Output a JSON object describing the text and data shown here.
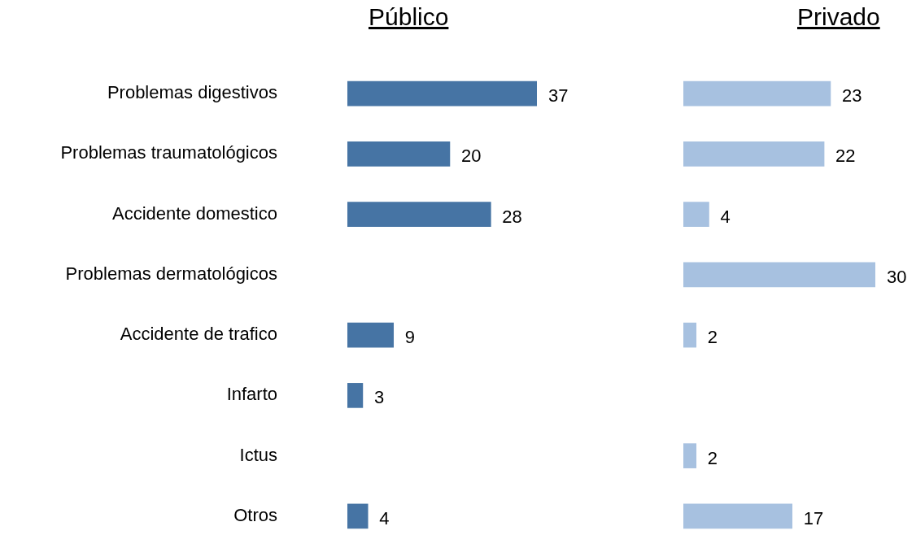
{
  "chart_data": [
    {
      "type": "bar",
      "orientation": "horizontal",
      "title": "Público",
      "categories": [
        "Problemas digestivos",
        "Problemas traumatológicos",
        "Accidente domestico",
        "Problemas dermatológicos",
        "Accidente de trafico",
        "Infarto",
        "Ictus",
        "Otros"
      ],
      "series": [
        {
          "color": "#4674a4",
          "values": [
            37,
            20,
            28,
            null,
            9,
            3,
            null,
            4
          ]
        }
      ],
      "data_labels": true,
      "grid": false,
      "legend": false,
      "tick_labels": "y"
    },
    {
      "type": "bar",
      "orientation": "horizontal",
      "title": "Privado",
      "categories": [
        null,
        null,
        null,
        null,
        null,
        null,
        null,
        null
      ],
      "series": [
        {
          "color": "#a7c1e0",
          "values": [
            23,
            22,
            4,
            30,
            2,
            null,
            2,
            17
          ]
        }
      ],
      "data_labels": true,
      "grid": false,
      "legend": false,
      "tick_labels": false
    }
  ]
}
